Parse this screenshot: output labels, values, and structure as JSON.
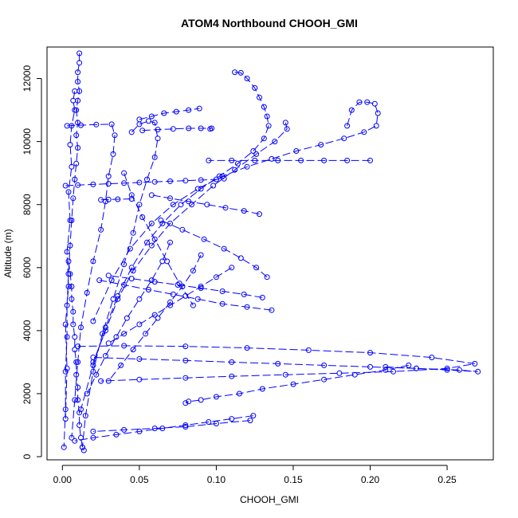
{
  "chart_data": {
    "type": "scatter",
    "title": "ATOM4 Northbound CHOOH_GMI",
    "xlabel": "CHOOH_GMI",
    "ylabel": "Altitude (m)",
    "xlim": [
      -0.01,
      0.28
    ],
    "ylim": [
      -100,
      13000
    ],
    "xticks": [
      0.0,
      0.05,
      0.1,
      0.15,
      0.2,
      0.25
    ],
    "xtick_labels": [
      "0.00",
      "0.05",
      "0.10",
      "0.15",
      "0.20",
      "0.25"
    ],
    "yticks": [
      0,
      2000,
      4000,
      6000,
      8000,
      10000,
      12000
    ],
    "ytick_labels": [
      "0",
      "2000",
      "4000",
      "6000",
      "8000",
      "10000",
      "12000"
    ],
    "grid": false,
    "marker": "open-circle",
    "line_style": "long-dash",
    "color": "#0000ff",
    "series": [
      {
        "x": [
          0.011,
          0.011,
          0.01,
          0.01,
          0.011,
          0.01,
          0.009,
          0.01,
          0.009,
          0.01,
          0.009,
          0.008,
          0.007,
          0.006,
          0.005,
          0.004,
          0.003,
          0.003,
          0.002,
          0.002,
          0.001
        ],
        "y": [
          12800,
          12500,
          12200,
          11900,
          11600,
          11300,
          11000,
          10600,
          10200,
          9800,
          9300,
          8800,
          8200,
          7500,
          6700,
          5800,
          4800,
          3800,
          2700,
          1500,
          300
        ]
      },
      {
        "x": [
          0.008,
          0.007,
          0.008,
          0.006,
          0.005,
          0.006,
          0.004,
          0.005,
          0.003,
          0.004,
          0.002,
          0.003,
          0.002
        ],
        "y": [
          11600,
          11300,
          11000,
          10500,
          9900,
          9200,
          8400,
          7500,
          6500,
          5400,
          4200,
          2800,
          1200
        ]
      },
      {
        "x": [
          0.003,
          0.012,
          0.022,
          0.032,
          0.034,
          0.033,
          0.03,
          0.028,
          0.025,
          0.02,
          0.016,
          0.012,
          0.01,
          0.008,
          0.006
        ],
        "y": [
          10500,
          10520,
          10540,
          10550,
          10200,
          9600,
          8900,
          8100,
          7200,
          6200,
          5200,
          4100,
          3000,
          1800,
          600
        ]
      },
      {
        "x": [
          0.045,
          0.05,
          0.056,
          0.06,
          0.062,
          0.06,
          0.055,
          0.05,
          0.046,
          0.04,
          0.033,
          0.026,
          0.02,
          0.015,
          0.013
        ],
        "y": [
          10300,
          10550,
          10650,
          10600,
          10100,
          9500,
          8800,
          8000,
          7100,
          6100,
          5000,
          3900,
          2700,
          1300,
          300
        ]
      },
      {
        "x": [
          0.05,
          0.058,
          0.066,
          0.074,
          0.082,
          0.089
        ],
        "y": [
          10700,
          10800,
          10900,
          10950,
          11000,
          11050
        ]
      },
      {
        "x": [
          0.052,
          0.062,
          0.072,
          0.082,
          0.09,
          0.097,
          0.096
        ],
        "y": [
          10350,
          10380,
          10400,
          10420,
          10420,
          10420,
          10400
        ]
      },
      {
        "x": [
          0.002,
          0.01,
          0.02,
          0.03,
          0.04,
          0.05,
          0.06,
          0.07,
          0.08,
          0.09,
          0.1,
          0.105
        ],
        "y": [
          8600,
          8620,
          8640,
          8660,
          8680,
          8700,
          8720,
          8740,
          8760,
          8780,
          8800,
          8820
        ]
      },
      {
        "x": [
          0.025,
          0.03,
          0.036,
          0.045
        ],
        "y": [
          8150,
          8160,
          8170,
          8180
        ]
      },
      {
        "x": [
          0.112,
          0.116,
          0.12,
          0.125,
          0.128,
          0.131,
          0.133,
          0.134,
          0.131,
          0.124,
          0.114,
          0.102,
          0.09,
          0.077,
          0.065,
          0.055,
          0.045,
          0.036,
          0.028,
          0.02,
          0.012
        ],
        "y": [
          12200,
          12180,
          12000,
          11700,
          11400,
          11100,
          10800,
          10500,
          10100,
          9700,
          9300,
          8900,
          8500,
          8000,
          7400,
          6800,
          6000,
          5100,
          4100,
          2900,
          1500
        ]
      },
      {
        "x": [
          0.185,
          0.188,
          0.193,
          0.198,
          0.203,
          0.205,
          0.204,
          0.196,
          0.183,
          0.168,
          0.152,
          0.136,
          0.12,
          0.104,
          0.088,
          0.072,
          0.058,
          0.044,
          0.032,
          0.02
        ],
        "y": [
          10500,
          11000,
          11250,
          11250,
          11200,
          10900,
          10500,
          10300,
          10100,
          9900,
          9700,
          9450,
          9200,
          8900,
          8500,
          8000,
          7400,
          6600,
          5600,
          4300
        ]
      },
      {
        "x": [
          0.2,
          0.185,
          0.17,
          0.155,
          0.14,
          0.125,
          0.11,
          0.095
        ],
        "y": [
          9400,
          9400,
          9400,
          9400,
          9400,
          9400,
          9400,
          9400
        ]
      },
      {
        "x": [
          0.145,
          0.146,
          0.138,
          0.126,
          0.112,
          0.098,
          0.084,
          0.07,
          0.058,
          0.046,
          0.036,
          0.028,
          0.02
        ],
        "y": [
          10600,
          10400,
          10000,
          9600,
          9100,
          8600,
          8000,
          7400,
          6700,
          5900,
          5000,
          4000,
          3000
        ]
      },
      {
        "x": [
          0.21,
          0.23,
          0.25,
          0.27,
          0.258,
          0.23,
          0.2,
          0.17,
          0.14,
          0.11,
          0.08,
          0.05,
          0.02
        ],
        "y": [
          2850,
          2800,
          2750,
          2700,
          2750,
          2800,
          2850,
          2900,
          2950,
          3000,
          3050,
          3100,
          3150
        ]
      },
      {
        "x": [
          0.01,
          0.04,
          0.08,
          0.12,
          0.16,
          0.2,
          0.24,
          0.268,
          0.25,
          0.215,
          0.18,
          0.145,
          0.11,
          0.08,
          0.05,
          0.025
        ],
        "y": [
          3500,
          3520,
          3500,
          3450,
          3380,
          3300,
          3150,
          2950,
          2800,
          2700,
          2650,
          2600,
          2550,
          2500,
          2450,
          2400
        ]
      },
      {
        "x": [
          0.225,
          0.21,
          0.19,
          0.17,
          0.15,
          0.13,
          0.115,
          0.1,
          0.09,
          0.082,
          0.08
        ],
        "y": [
          2900,
          2750,
          2600,
          2450,
          2300,
          2150,
          2000,
          1900,
          1800,
          1750,
          1700
        ]
      },
      {
        "x": [
          0.124,
          0.11,
          0.095,
          0.08,
          0.065,
          0.05,
          0.035,
          0.02,
          0.008
        ],
        "y": [
          1300,
          1200,
          1100,
          1000,
          900,
          800,
          700,
          600,
          500
        ]
      },
      {
        "x": [
          0.122,
          0.1,
          0.08,
          0.06,
          0.04,
          0.02
        ],
        "y": [
          1150,
          1050,
          950,
          900,
          850,
          800
        ]
      },
      {
        "x": [
          0.136,
          0.12,
          0.104,
          0.088,
          0.072,
          0.056,
          0.04,
          0.024
        ],
        "y": [
          4650,
          4750,
          4850,
          5000,
          5150,
          5300,
          5450,
          5600
        ]
      },
      {
        "x": [
          0.13,
          0.118,
          0.104,
          0.09,
          0.075,
          0.06,
          0.045,
          0.03
        ],
        "y": [
          5050,
          5150,
          5250,
          5350,
          5450,
          5550,
          5650,
          5750
        ]
      },
      {
        "x": [
          0.133,
          0.126,
          0.116,
          0.105,
          0.092,
          0.078,
          0.064
        ],
        "y": [
          5700,
          6000,
          6300,
          6600,
          6900,
          7200,
          7500
        ]
      },
      {
        "x": [
          0.128,
          0.118,
          0.106,
          0.094,
          0.082,
          0.07,
          0.058
        ],
        "y": [
          7700,
          7800,
          7900,
          8000,
          8100,
          8200,
          8300
        ]
      },
      {
        "x": [
          0.004,
          0.005,
          0.006,
          0.006,
          0.007,
          0.007,
          0.008,
          0.008,
          0.009,
          0.009,
          0.01,
          0.01,
          0.011,
          0.011,
          0.012,
          0.013,
          0.014
        ],
        "y": [
          6200,
          5800,
          5400,
          5000,
          4600,
          4200,
          3800,
          3400,
          3000,
          2600,
          2200,
          1800,
          1400,
          1000,
          600,
          300,
          200
        ]
      },
      {
        "x": [
          0.07,
          0.065,
          0.058,
          0.05,
          0.042,
          0.035,
          0.028,
          0.022,
          0.016
        ],
        "y": [
          6800,
          6200,
          5600,
          5000,
          4400,
          3800,
          3200,
          2600,
          2000
        ]
      },
      {
        "x": [
          0.09,
          0.085,
          0.078,
          0.07,
          0.062,
          0.054,
          0.046,
          0.038,
          0.03
        ],
        "y": [
          6400,
          5900,
          5400,
          4900,
          4400,
          3900,
          3400,
          2900,
          2400
        ]
      },
      {
        "x": [
          0.11,
          0.1,
          0.09,
          0.08,
          0.07,
          0.06,
          0.05,
          0.04,
          0.03
        ],
        "y": [
          6000,
          5700,
          5400,
          5100,
          4800,
          4500,
          4200,
          3900,
          3600
        ]
      },
      {
        "x": [
          0.04,
          0.045,
          0.052,
          0.06,
          0.068,
          0.076,
          0.085
        ],
        "y": [
          9000,
          8300,
          7600,
          6900,
          6200,
          5500,
          4800
        ]
      }
    ]
  }
}
